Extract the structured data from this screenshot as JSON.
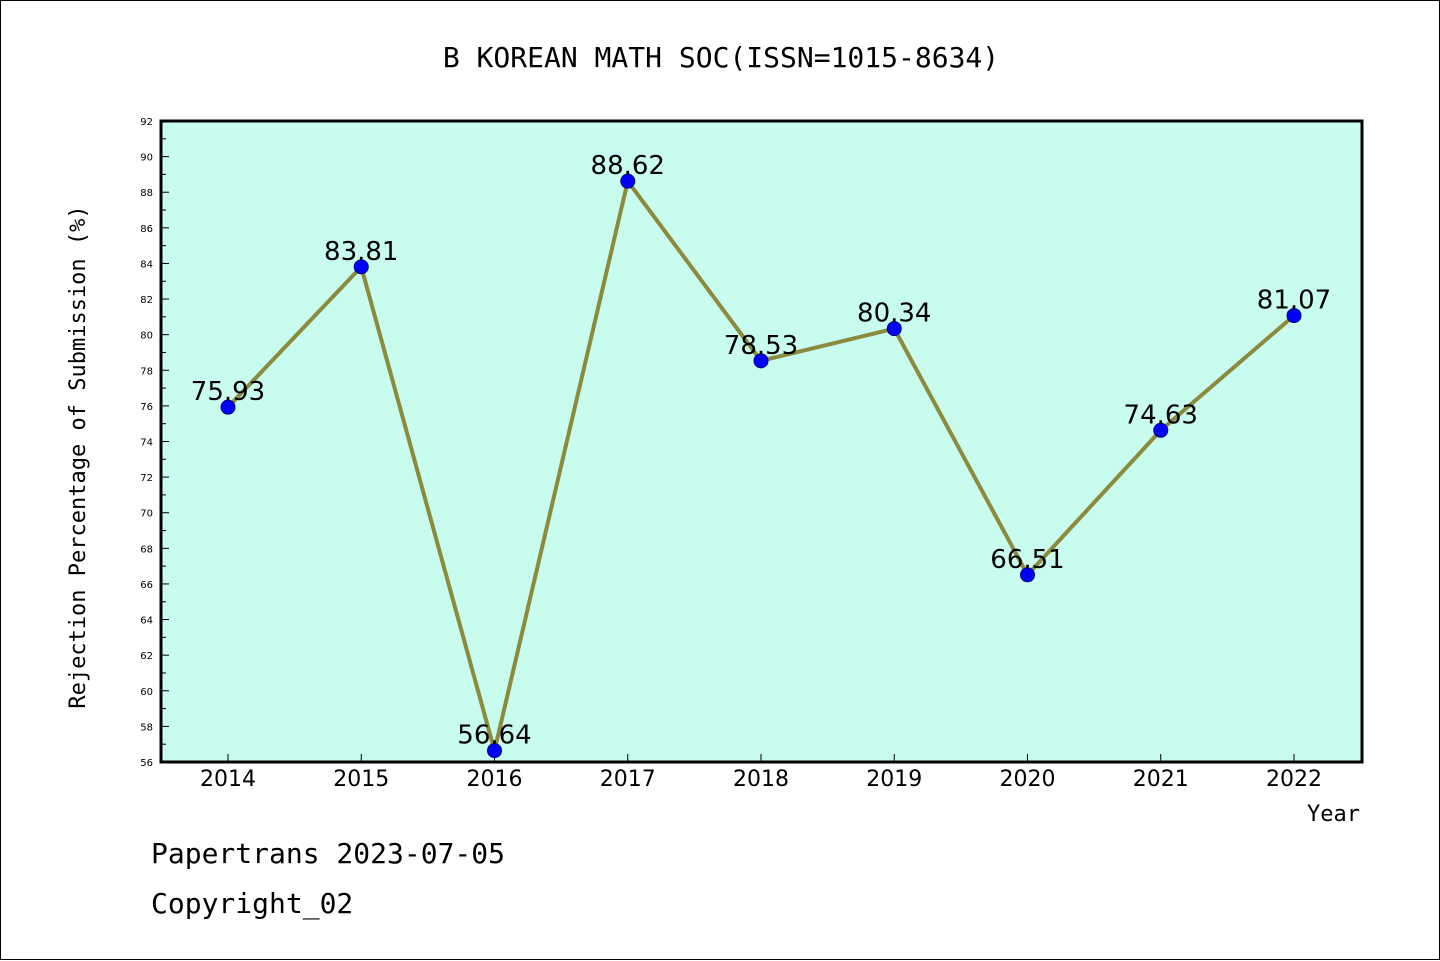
{
  "chart_data": {
    "type": "line",
    "title": "B KOREAN MATH SOC(ISSN=1015-8634)",
    "xlabel": "Year",
    "ylabel": "Rejection Percentage of Submission (%)",
    "categories": [
      "2014",
      "2015",
      "2016",
      "2017",
      "2018",
      "2019",
      "2020",
      "2021",
      "2022"
    ],
    "values": [
      75.93,
      83.81,
      56.64,
      88.62,
      78.53,
      80.34,
      66.51,
      74.63,
      81.07
    ],
    "value_labels": [
      "75.93",
      "83.81",
      "56.64",
      "88.62",
      "78.53",
      "80.34",
      "66.51",
      "74.63",
      "81.07"
    ],
    "ylim": [
      56,
      92
    ],
    "yticks": [
      "56",
      "58",
      "60",
      "62",
      "64",
      "66",
      "68",
      "70",
      "72",
      "74",
      "76",
      "78",
      "80",
      "82",
      "84",
      "86",
      "88",
      "90",
      "92"
    ],
    "grid": false,
    "colors": {
      "plot_background": "#c8fcee",
      "line": "#8c8a3c",
      "marker": "#0000ff",
      "marker_edge": "#000080"
    }
  },
  "footer": {
    "line1": "Papertrans 2023-07-05",
    "line2": "Copyright_02"
  }
}
